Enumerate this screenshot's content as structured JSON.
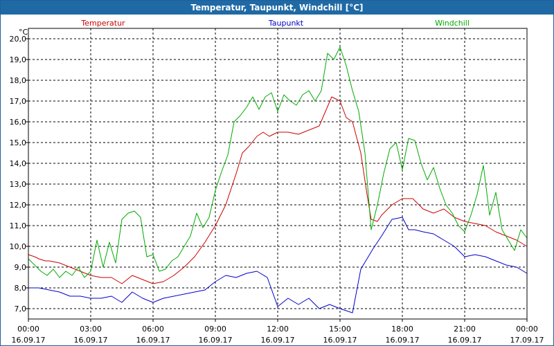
{
  "window": {
    "title": "Temperatur, Taupunkt, Windchill [°C]"
  },
  "chart_data": {
    "type": "line",
    "title": "Temperatur, Taupunkt, Windchill [°C]",
    "ylabel": "°C",
    "xlabel": "",
    "ylim": [
      6.5,
      20.5
    ],
    "xlim": [
      0,
      24
    ],
    "grid": true,
    "y_ticks": [
      "7,0",
      "8,0",
      "9,0",
      "10,0",
      "11,0",
      "12,0",
      "13,0",
      "14,0",
      "15,0",
      "16,0",
      "17,0",
      "18,0",
      "19,0",
      "20,0"
    ],
    "y_tick_values": [
      7,
      8,
      9,
      10,
      11,
      12,
      13,
      14,
      15,
      16,
      17,
      18,
      19,
      20
    ],
    "x_ticks": [
      {
        "hour": 0,
        "time": "00:00",
        "date": "16.09.17"
      },
      {
        "hour": 3,
        "time": "03:00",
        "date": "16.09.17"
      },
      {
        "hour": 6,
        "time": "06:00",
        "date": "16.09.17"
      },
      {
        "hour": 9,
        "time": "09:00",
        "date": "16.09.17"
      },
      {
        "hour": 12,
        "time": "12:00",
        "date": "16.09.17"
      },
      {
        "hour": 15,
        "time": "15:00",
        "date": "16.09.17"
      },
      {
        "hour": 18,
        "time": "18:00",
        "date": "16.09.17"
      },
      {
        "hour": 21,
        "time": "21:00",
        "date": "16.09.17"
      },
      {
        "hour": 24,
        "time": "00:00",
        "date": "17.09.17"
      }
    ],
    "series": [
      {
        "name": "Temperatur",
        "color": "#cc0000",
        "x": [
          0,
          0.3,
          0.5,
          0.8,
          1,
          1.5,
          2,
          2.5,
          3,
          3.5,
          4,
          4.5,
          5,
          5.5,
          6,
          6.5,
          7,
          7.5,
          8,
          8.5,
          9,
          9.5,
          10,
          10.3,
          10.6,
          11,
          11.3,
          11.6,
          12,
          12.5,
          13,
          13.5,
          14,
          14.3,
          14.6,
          15,
          15.3,
          15.6,
          16,
          16.3,
          16.5,
          16.8,
          17,
          17.5,
          18,
          18.5,
          19,
          19.5,
          20,
          20.5,
          21,
          21.5,
          22,
          22.5,
          23,
          23.5,
          24
        ],
        "values": [
          9.6,
          9.5,
          9.4,
          9.3,
          9.3,
          9.2,
          9.0,
          8.8,
          8.6,
          8.5,
          8.5,
          8.2,
          8.6,
          8.4,
          8.2,
          8.3,
          8.6,
          9.0,
          9.5,
          10.2,
          11.0,
          12.0,
          13.5,
          14.5,
          14.8,
          15.3,
          15.5,
          15.3,
          15.5,
          15.5,
          15.4,
          15.6,
          15.8,
          16.5,
          17.2,
          17.0,
          16.2,
          16.0,
          14.5,
          12.5,
          11.3,
          11.2,
          11.5,
          12.0,
          12.3,
          12.3,
          11.8,
          11.6,
          11.8,
          11.4,
          11.2,
          11.1,
          11.0,
          10.7,
          10.5,
          10.3,
          10.0
        ]
      },
      {
        "name": "Taupunkt",
        "color": "#0000cc",
        "x": [
          0,
          0.5,
          1,
          1.5,
          2,
          2.5,
          3,
          3.5,
          4,
          4.5,
          5,
          5.5,
          6,
          6.5,
          7,
          7.5,
          8,
          8.5,
          9,
          9.5,
          10,
          10.5,
          11,
          11.5,
          12,
          12.5,
          13,
          13.5,
          14,
          14.5,
          15,
          15.3,
          15.6,
          16,
          16.3,
          16.6,
          17,
          17.5,
          18,
          18.3,
          18.6,
          19,
          19.5,
          20,
          20.5,
          21,
          21.5,
          22,
          22.5,
          23,
          23.5,
          24
        ],
        "values": [
          8.0,
          8.0,
          7.9,
          7.8,
          7.6,
          7.6,
          7.5,
          7.5,
          7.6,
          7.3,
          7.8,
          7.5,
          7.3,
          7.5,
          7.6,
          7.7,
          7.8,
          7.9,
          8.3,
          8.6,
          8.5,
          8.7,
          8.8,
          8.5,
          7.1,
          7.5,
          7.2,
          7.5,
          7.0,
          7.2,
          7.0,
          6.9,
          6.8,
          8.9,
          9.4,
          9.9,
          10.5,
          11.3,
          11.4,
          10.8,
          10.8,
          10.7,
          10.6,
          10.3,
          10.0,
          9.5,
          9.6,
          9.5,
          9.3,
          9.1,
          9.0,
          8.7
        ]
      },
      {
        "name": "Windchill",
        "color": "#00aa00",
        "x": [
          0,
          0.3,
          0.6,
          0.9,
          1.2,
          1.5,
          1.8,
          2.1,
          2.4,
          2.7,
          3,
          3.3,
          3.6,
          3.9,
          4.2,
          4.5,
          4.8,
          5.1,
          5.4,
          5.7,
          6,
          6.3,
          6.6,
          6.9,
          7.2,
          7.5,
          7.8,
          8.1,
          8.4,
          8.7,
          9,
          9.3,
          9.6,
          9.9,
          10.2,
          10.5,
          10.8,
          11.1,
          11.4,
          11.7,
          12,
          12.3,
          12.6,
          12.9,
          13.2,
          13.5,
          13.8,
          14.1,
          14.4,
          14.7,
          15,
          15.3,
          15.6,
          15.9,
          16.2,
          16.5,
          16.8,
          17.1,
          17.4,
          17.7,
          18,
          18.3,
          18.6,
          18.9,
          19.2,
          19.5,
          19.8,
          20.1,
          20.4,
          20.7,
          21,
          21.3,
          21.6,
          21.9,
          22.2,
          22.5,
          22.8,
          23.1,
          23.4,
          23.7,
          24
        ],
        "values": [
          9.4,
          9.1,
          8.8,
          8.6,
          8.9,
          8.5,
          8.8,
          8.6,
          9.0,
          8.5,
          8.8,
          10.3,
          9.0,
          10.2,
          9.2,
          11.3,
          11.6,
          11.7,
          11.4,
          9.5,
          9.6,
          8.8,
          8.9,
          9.3,
          9.5,
          10.0,
          10.5,
          11.6,
          10.9,
          11.4,
          12.7,
          13.6,
          14.4,
          16.0,
          16.3,
          16.7,
          17.2,
          16.6,
          17.2,
          17.4,
          16.5,
          17.3,
          17.0,
          16.8,
          17.3,
          17.5,
          17.0,
          17.5,
          19.3,
          19.0,
          19.6,
          18.7,
          17.5,
          16.5,
          14.5,
          10.8,
          12.0,
          13.5,
          14.7,
          15.0,
          13.7,
          15.2,
          15.1,
          14.0,
          13.2,
          13.8,
          12.8,
          12.0,
          11.6,
          11.0,
          10.7,
          11.5,
          12.5,
          13.9,
          11.5,
          12.6,
          10.8,
          10.3,
          9.8,
          10.8,
          10.4
        ]
      }
    ]
  }
}
